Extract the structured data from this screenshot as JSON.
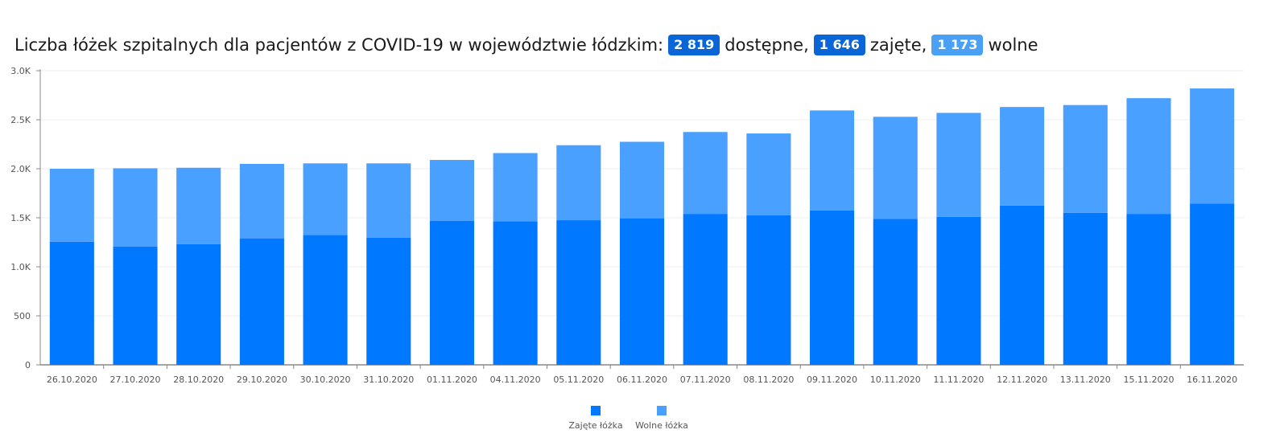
{
  "title": {
    "prefix": "Liczba łóżek szpitalnych dla pacjentów z COVID-19 w województwie łódzkim:",
    "badge1": "2 819",
    "after1": "dostępne,",
    "badge2": "1 646",
    "after2": "zajęte,",
    "badge3": "1 173",
    "after3": "wolne"
  },
  "colors": {
    "occupied": "#0078ff",
    "free": "#4aa0ff",
    "axis": "#888888",
    "grid": "#eeeeee"
  },
  "chart_data": {
    "type": "bar",
    "stacked": true,
    "categories": [
      "26.10.2020",
      "27.10.2020",
      "28.10.2020",
      "29.10.2020",
      "30.10.2020",
      "31.10.2020",
      "01.11.2020",
      "04.11.2020",
      "05.11.2020",
      "06.11.2020",
      "07.11.2020",
      "08.11.2020",
      "09.11.2020",
      "10.11.2020",
      "11.11.2020",
      "12.11.2020",
      "13.11.2020",
      "15.11.2020",
      "16.11.2020"
    ],
    "series": [
      {
        "name": "Zajęte łóżka",
        "values": [
          1255,
          1205,
          1230,
          1290,
          1325,
          1295,
          1470,
          1465,
          1475,
          1495,
          1540,
          1525,
          1575,
          1490,
          1510,
          1625,
          1550,
          1540,
          1646
        ]
      },
      {
        "name": "Wolne łóżka",
        "values": [
          745,
          800,
          780,
          760,
          730,
          760,
          620,
          695,
          765,
          780,
          835,
          835,
          1020,
          1040,
          1060,
          1005,
          1100,
          1180,
          1173
        ]
      }
    ],
    "yticks": [
      "0",
      "500",
      "1.0K",
      "1.5K",
      "2.0K",
      "2.5K",
      "3.0K"
    ],
    "ytick_values": [
      0,
      500,
      1000,
      1500,
      2000,
      2500,
      3000
    ],
    "ylim": [
      0,
      3000
    ],
    "legend_position": "bottom"
  }
}
